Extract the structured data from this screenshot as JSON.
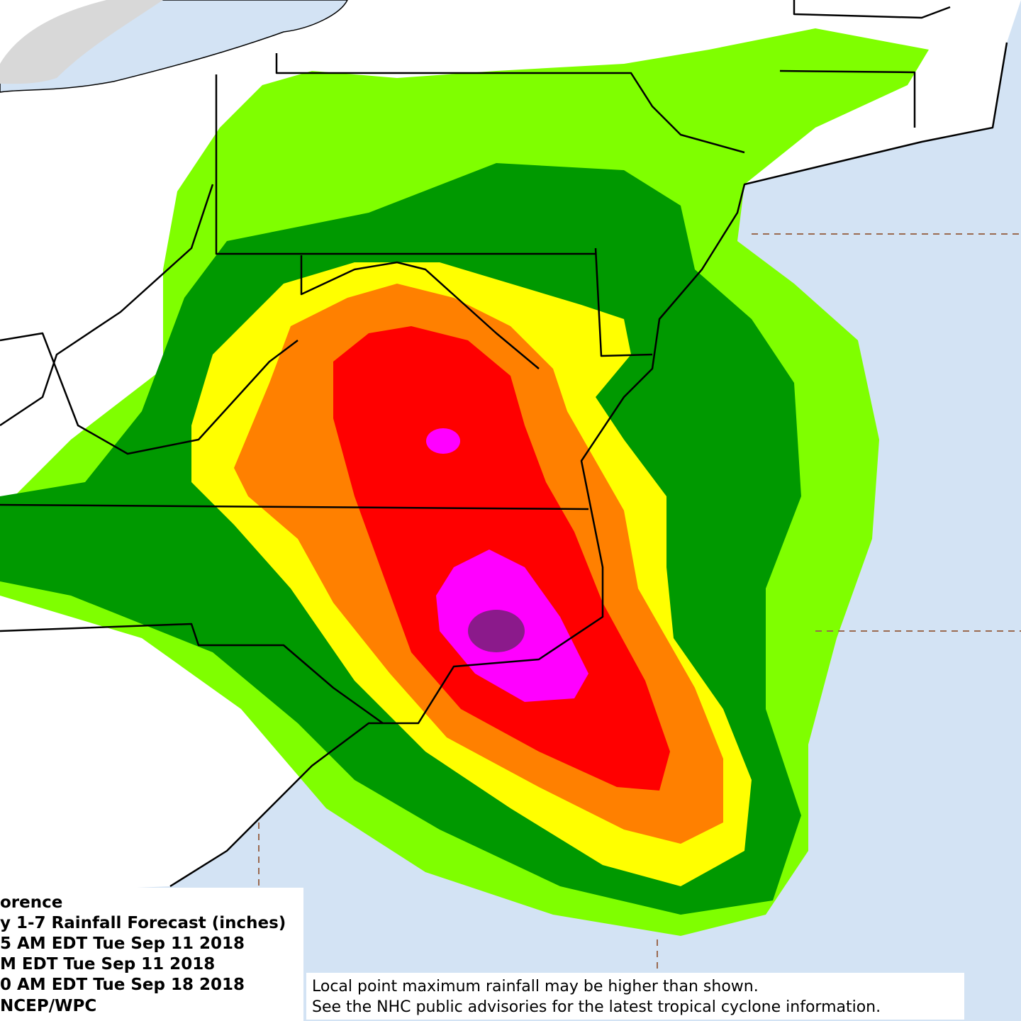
{
  "title_block": {
    "lines": [
      "orence",
      "y 1-7 Rainfall Forecast (inches)",
      "5 AM EDT Tue Sep 11 2018",
      "M EDT Tue Sep 11 2018",
      "0 AM EDT Tue Sep 18 2018",
      "NCEP/WPC"
    ]
  },
  "notes": {
    "lines": [
      "Local point maximum rainfall may be higher than shown.",
      "See the NHC public advisories for the latest tropical cyclone information."
    ]
  }
}
